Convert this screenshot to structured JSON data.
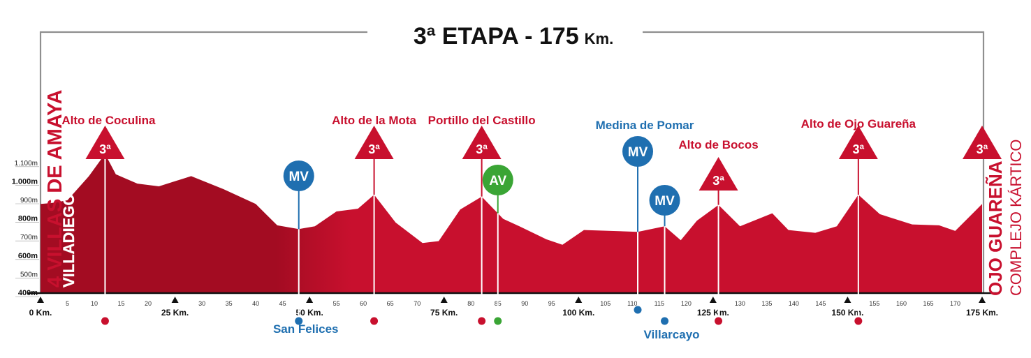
{
  "header": {
    "title": "3ª ETAPA - 175",
    "unit": "Km."
  },
  "colors": {
    "profile": "#c8102e",
    "profile_dark": "#a30c22",
    "sprint": "#1f6fb0",
    "bonus": "#3aa535",
    "axis": "#111111"
  },
  "start_town": {
    "line1": "4 VILLAS DE AMAYA",
    "line2": "VILLADIEGO"
  },
  "finish_town": {
    "line1": "OJO GUAREÑA",
    "line2": "COMPLEJO KÁRTICO"
  },
  "chart_data": {
    "type": "area",
    "title": "3ª ETAPA - 175 Km.",
    "xlabel": "",
    "ylabel": "",
    "xlim": [
      0,
      175
    ],
    "ylim": [
      400,
      1150
    ],
    "grid": false,
    "x_major_ticks": [
      {
        "km": 0,
        "label": "0 Km."
      },
      {
        "km": 25,
        "label": "25 Km."
      },
      {
        "km": 50,
        "label": "50 Km."
      },
      {
        "km": 75,
        "label": "75 Km."
      },
      {
        "km": 100,
        "label": "100 Km."
      },
      {
        "km": 125,
        "label": "125 Km."
      },
      {
        "km": 150,
        "label": "150 Km."
      },
      {
        "km": 175,
        "label": "175 Km."
      }
    ],
    "x_minor_ticks": [
      5,
      10,
      15,
      20,
      30,
      35,
      40,
      45,
      55,
      60,
      65,
      70,
      80,
      85,
      90,
      95,
      105,
      110,
      115,
      120,
      130,
      135,
      140,
      145,
      155,
      160,
      165,
      170
    ],
    "y_ticks": [
      {
        "alt": 400,
        "label": "400m",
        "strong": true
      },
      {
        "alt": 500,
        "label": "500m",
        "strong": false
      },
      {
        "alt": 600,
        "label": "600m",
        "strong": true
      },
      {
        "alt": 700,
        "label": "700m",
        "strong": false
      },
      {
        "alt": 800,
        "label": "800m",
        "strong": true
      },
      {
        "alt": 900,
        "label": "900m",
        "strong": false
      },
      {
        "alt": 1000,
        "label": "1.000m",
        "strong": true
      },
      {
        "alt": 1100,
        "label": "1.100m",
        "strong": false
      }
    ],
    "profile": [
      [
        0,
        880
      ],
      [
        2,
        885
      ],
      [
        5,
        900
      ],
      [
        9,
        1030
      ],
      [
        12,
        1150
      ],
      [
        14,
        1040
      ],
      [
        18,
        990
      ],
      [
        22,
        975
      ],
      [
        28,
        1030
      ],
      [
        34,
        960
      ],
      [
        40,
        880
      ],
      [
        44,
        765
      ],
      [
        48,
        745
      ],
      [
        51,
        760
      ],
      [
        55,
        840
      ],
      [
        59,
        855
      ],
      [
        62,
        930
      ],
      [
        66,
        780
      ],
      [
        71,
        670
      ],
      [
        74,
        680
      ],
      [
        78,
        850
      ],
      [
        82,
        920
      ],
      [
        86,
        800
      ],
      [
        89,
        760
      ],
      [
        94,
        690
      ],
      [
        97,
        660
      ],
      [
        101,
        740
      ],
      [
        106,
        735
      ],
      [
        111,
        730
      ],
      [
        116,
        760
      ],
      [
        119,
        685
      ],
      [
        122,
        790
      ],
      [
        126,
        875
      ],
      [
        130,
        760
      ],
      [
        136,
        830
      ],
      [
        139,
        740
      ],
      [
        144,
        725
      ],
      [
        148,
        760
      ],
      [
        152,
        930
      ],
      [
        156,
        825
      ],
      [
        162,
        770
      ],
      [
        167,
        765
      ],
      [
        170,
        735
      ],
      [
        175,
        880
      ]
    ],
    "climbs": [
      {
        "name": "Alto de Coculina",
        "km": 12,
        "cat": "3ª"
      },
      {
        "name": "Alto de la Mota",
        "km": 62,
        "cat": "3ª"
      },
      {
        "name": "Portillo del Castillo",
        "km": 82,
        "cat": "3ª"
      },
      {
        "name": "Alto de Bocos",
        "km": 126,
        "cat": "3ª"
      },
      {
        "name": "Alto de Ojo Guareña",
        "km": 152,
        "cat": "3ª"
      },
      {
        "name": "",
        "km": 175,
        "cat": "3ª"
      }
    ],
    "sprints": [
      {
        "label": "MV",
        "km": 48,
        "town": "San Felices",
        "type": "sprint"
      },
      {
        "label": "AV",
        "km": 85,
        "town": "",
        "type": "bonus"
      },
      {
        "label": "MV",
        "km": 111,
        "town": "Medina de Pomar",
        "type": "sprint"
      },
      {
        "label": "MV",
        "km": 116,
        "town": "Villarcayo",
        "type": "sprint"
      }
    ]
  }
}
